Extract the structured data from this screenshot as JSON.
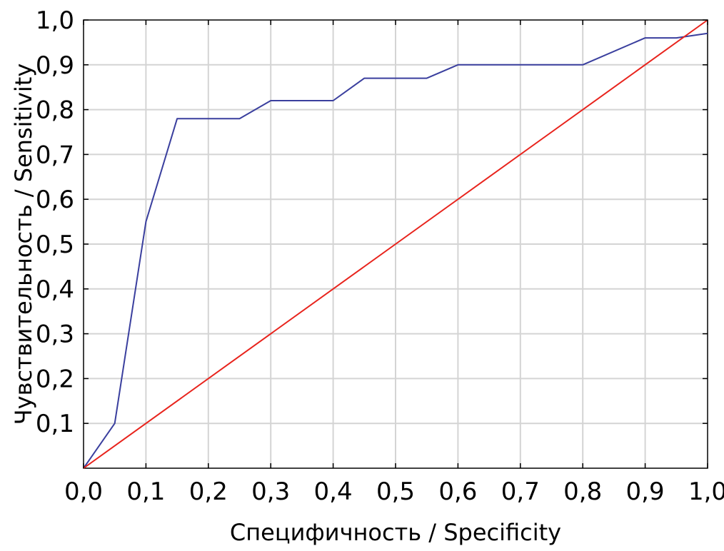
{
  "chart_data": {
    "type": "line",
    "title": "",
    "xlabel": "Специфичность / Specificity",
    "ylabel": "Чувствительность / Sensitivity",
    "xlim": [
      0,
      1
    ],
    "ylim": [
      0,
      1
    ],
    "grid": true,
    "x_ticks": [
      "0,0",
      "0,1",
      "0,2",
      "0,3",
      "0,4",
      "0,5",
      "0,6",
      "0,7",
      "0,8",
      "0,9",
      "1,0"
    ],
    "y_ticks": [
      "0,1",
      "0,2",
      "0,3",
      "0,4",
      "0,5",
      "0,6",
      "0,7",
      "0,8",
      "0,9",
      "1,0"
    ],
    "series": [
      {
        "color": "#3a3f9e",
        "x": [
          0.0,
          0.05,
          0.1,
          0.15,
          0.25,
          0.3,
          0.4,
          0.45,
          0.55,
          0.6,
          0.8,
          0.9,
          0.95,
          1.0
        ],
        "y": [
          0.0,
          0.1,
          0.55,
          0.78,
          0.78,
          0.82,
          0.82,
          0.87,
          0.87,
          0.9,
          0.9,
          0.96,
          0.96,
          0.97
        ]
      },
      {
        "color": "#e8231c",
        "x": [
          0.0,
          1.0
        ],
        "y": [
          0.0,
          1.0
        ]
      }
    ]
  }
}
